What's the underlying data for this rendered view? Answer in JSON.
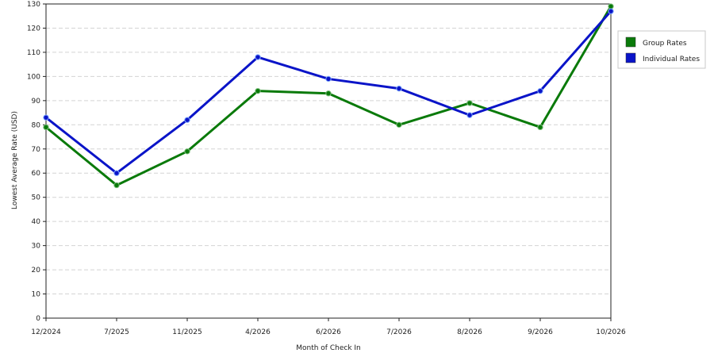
{
  "chart_data": {
    "type": "line",
    "xlabel": "Month of Check In",
    "ylabel": "Lowest Average Rate (USD)",
    "categories": [
      "12/2024",
      "7/2025",
      "11/2025",
      "4/2026",
      "6/2026",
      "7/2026",
      "8/2026",
      "9/2026",
      "10/2026"
    ],
    "ylim": [
      0,
      130
    ],
    "yticks": [
      0,
      10,
      20,
      30,
      40,
      50,
      60,
      70,
      80,
      90,
      100,
      110,
      120,
      130
    ],
    "grid": true,
    "legend_position": "right",
    "series": [
      {
        "name": "Group Rates",
        "color": "#0a7a0a",
        "values": [
          79,
          55,
          69,
          94,
          93,
          80,
          89,
          79,
          129
        ]
      },
      {
        "name": "Individual Rates",
        "color": "#0a14c8",
        "values": [
          83,
          60,
          82,
          108,
          99,
          95,
          84,
          94,
          127
        ]
      }
    ]
  }
}
